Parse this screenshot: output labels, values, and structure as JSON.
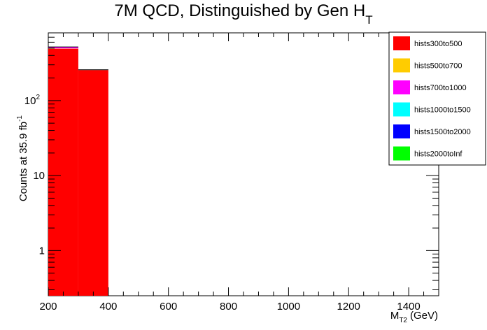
{
  "chart_data": {
    "type": "bar",
    "stacked": true,
    "log_y": true,
    "title": "7M QCD, Distinguished by Gen H",
    "title_subscript": "T",
    "ylabel": "Counts at 35.9 fb",
    "ylabel_superscript": "-1",
    "xlabel_main": "M",
    "xlabel_sub": "T2",
    "xlabel_unit": "(GeV)",
    "xlim": [
      200,
      1500
    ],
    "ylim": [
      0.25,
      800
    ],
    "x_ticks": [
      200,
      400,
      600,
      800,
      1000,
      1200,
      1400
    ],
    "y_ticks": [
      {
        "value": 1,
        "label": "1"
      },
      {
        "value": 10,
        "label": "10"
      },
      {
        "value": 100,
        "label": "10",
        "sup": "2"
      }
    ],
    "bins": [
      {
        "x0": 200,
        "x1": 300
      },
      {
        "x0": 300,
        "x1": 400
      }
    ],
    "series": [
      {
        "name": "hists300to500",
        "color": "#ff0000",
        "values": [
          490,
          255
        ]
      },
      {
        "name": "hists500to700",
        "color": "#ffcc00",
        "values": [
          5,
          1
        ]
      },
      {
        "name": "hists700to1000",
        "color": "#ff00ff",
        "values": [
          25,
          2
        ]
      },
      {
        "name": "hists1000to1500",
        "color": "#00ffff",
        "values": [
          0,
          0
        ]
      },
      {
        "name": "hists1500to2000",
        "color": "#0000ff",
        "values": [
          0,
          0
        ]
      },
      {
        "name": "hists2000toInf",
        "color": "#00ff00",
        "values": [
          0,
          0
        ]
      }
    ],
    "legend_position": "top-right",
    "grid": false
  }
}
